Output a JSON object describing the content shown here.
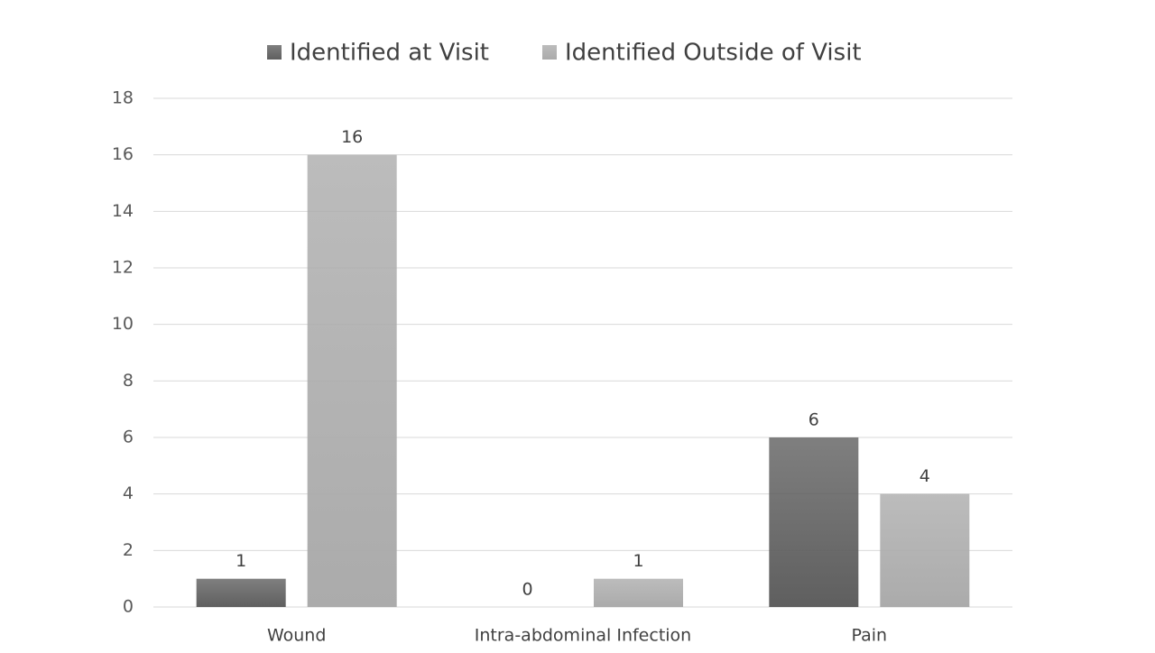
{
  "chart_data": {
    "type": "bar",
    "categories": [
      "Wound",
      "Intra-abdominal Infection",
      "Pain"
    ],
    "series": [
      {
        "name": "Identified at Visit",
        "color": "#5f5f5f",
        "values": [
          1,
          0,
          6
        ]
      },
      {
        "name": "Identified Outside of Visit",
        "color": "#ababab",
        "values": [
          16,
          1,
          4
        ]
      }
    ],
    "ylim": [
      0,
      18
    ],
    "yticks": [
      0,
      2,
      4,
      6,
      8,
      10,
      12,
      14,
      16,
      18
    ],
    "grid": true,
    "legend": "top"
  }
}
